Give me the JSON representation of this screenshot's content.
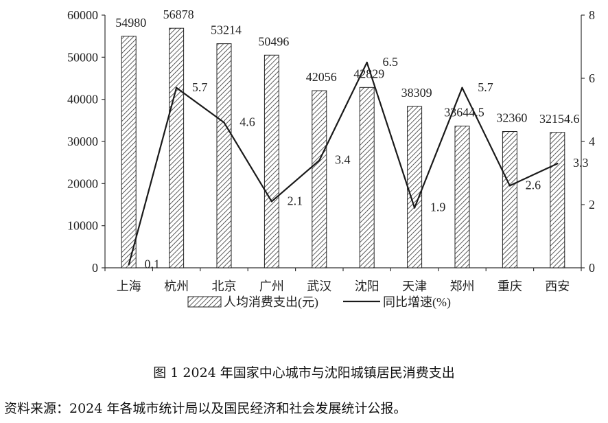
{
  "chart_data": {
    "type": "bar+line",
    "categories": [
      "上海",
      "杭州",
      "北京",
      "广州",
      "武汉",
      "沈阳",
      "天津",
      "郑州",
      "重庆",
      "西安"
    ],
    "series": [
      {
        "name": "人均消费支出(元)",
        "type": "bar",
        "axis": "left",
        "values": [
          54980,
          56878,
          53214,
          50496,
          42056,
          42829,
          38309,
          33644.5,
          32360,
          32154.6
        ],
        "labels": [
          "54980",
          "56878",
          "53214",
          "50496",
          "42056",
          "42829",
          "38309",
          "33644.5",
          "32360",
          "32154.6"
        ],
        "pattern": "diagonal-hatch"
      },
      {
        "name": "同比增速(%)",
        "type": "line",
        "axis": "right",
        "values": [
          0.1,
          5.7,
          4.6,
          2.1,
          3.4,
          6.5,
          1.9,
          5.7,
          2.6,
          3.3
        ],
        "labels": [
          "0.1",
          "5.7",
          "4.6",
          "2.1",
          "3.4",
          "6.5",
          "1.9",
          "5.7",
          "2.6",
          "3.3"
        ],
        "color": "#1a1a1a"
      }
    ],
    "y_left": {
      "ylim": [
        0,
        60000
      ],
      "ticks": [
        "0",
        "10000",
        "20000",
        "30000",
        "40000",
        "50000",
        "60000"
      ]
    },
    "y_right": {
      "ylim": [
        0,
        8
      ],
      "ticks": [
        "0",
        "2",
        "4",
        "6",
        "8"
      ]
    },
    "legend": {
      "position": "bottom",
      "items": [
        "人均消费支出(元)",
        "同比增速(%)"
      ]
    },
    "grid": false,
    "title": "图 1 2024 年国家中心城市与沈阳城镇居民消费支出"
  },
  "caption": {
    "title": "图 1 2024 年国家中心城市与沈阳城镇居民消费支出",
    "source": "资料来源：2024 年各城市统计局以及国民经济和社会发展统计公报。"
  }
}
